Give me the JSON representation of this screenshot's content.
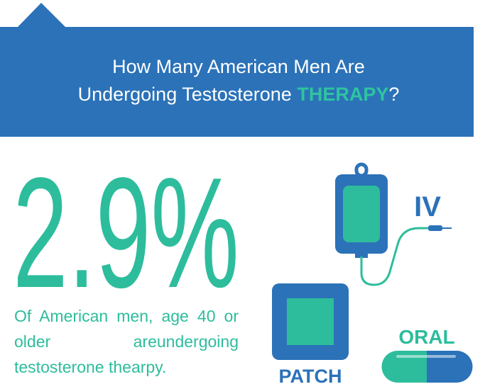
{
  "header": {
    "title_lines": [
      "How Many American Men Are",
      "Undergoing Testosterone"
    ],
    "highlight": "THERAPY",
    "punctuation": "?"
  },
  "stat": {
    "value": "2.9%",
    "description": "Of American men, age 40 or older areundergoing testosterone thearpy."
  },
  "methods": [
    "IV",
    "PATCH",
    "ORAL"
  ]
}
